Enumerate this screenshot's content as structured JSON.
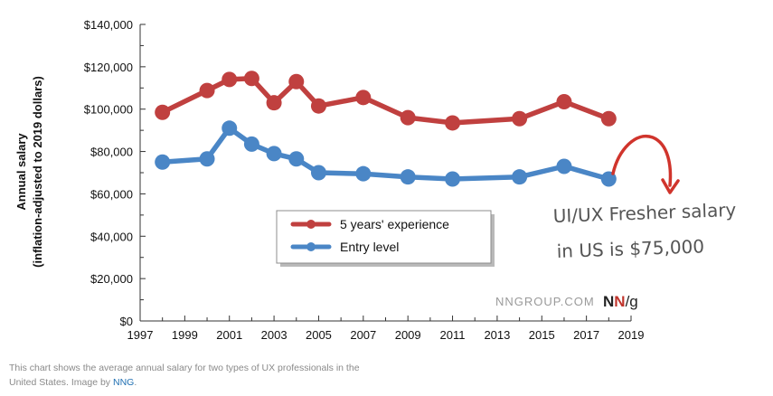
{
  "chart_data": {
    "type": "line",
    "title": "",
    "ylabel_lines": [
      "Annual salary",
      "(inflation-adjusted  to 2019  dollars)"
    ],
    "xlabel": "",
    "xlim": [
      1997,
      2019
    ],
    "ylim": [
      0,
      140000
    ],
    "x_ticks": [
      "1997",
      "1999",
      "2001",
      "2003",
      "2005",
      "2007",
      "2009",
      "2011",
      "2013",
      "2015",
      "2017",
      "2019"
    ],
    "y_ticks": [
      "$0",
      "$20,000",
      "$40,000",
      "$60,000",
      "$80,000",
      "$100,000",
      "$120,000",
      "$140,000"
    ],
    "legend_placement": "center-bottom",
    "grid": false,
    "series": [
      {
        "name": "5 years' experience",
        "color": "#c0403f",
        "x": [
          1998,
          2000,
          2001,
          2002,
          2003,
          2004,
          2005,
          2007,
          2009,
          2011,
          2014,
          2016,
          2018
        ],
        "values": [
          98500,
          108800,
          114000,
          114500,
          103000,
          113000,
          101500,
          105500,
          96000,
          93500,
          95500,
          103500,
          95500
        ]
      },
      {
        "name": "Entry level",
        "color": "#4a86c6",
        "x": [
          1998,
          2000,
          2001,
          2002,
          2003,
          2004,
          2005,
          2007,
          2009,
          2011,
          2014,
          2016,
          2018
        ],
        "values": [
          75000,
          76500,
          91000,
          83500,
          79000,
          76500,
          70000,
          69500,
          68000,
          67000,
          68000,
          73000,
          67000
        ]
      }
    ]
  },
  "watermark": {
    "text": "NNGROUP.COM",
    "logo_n1": "N",
    "logo_n2": "N",
    "logo_g": "/g"
  },
  "annotation": {
    "line1": "UI/UX Fresher salary",
    "line2": "in US is $75,000",
    "color": "#d0342c"
  },
  "caption": {
    "text": "This chart shows the average annual salary for two types of UX professionals in the United States. Image by ",
    "link": "NNG",
    "end": "."
  }
}
